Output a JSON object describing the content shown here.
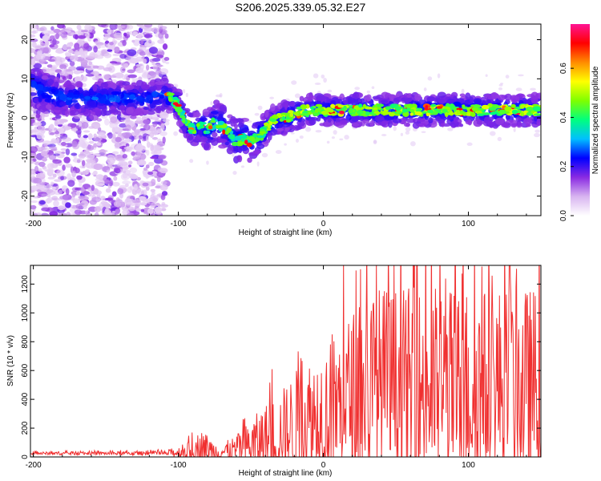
{
  "title": "S206.2025.339.05.32.E27",
  "chart_data": [
    {
      "type": "heatmap",
      "subtitle": "spectrogram",
      "xlabel": "Height of straight line (km)",
      "ylabel": "Frequency (Hz)",
      "xlim": [
        -202,
        150
      ],
      "ylim": [
        -25,
        24
      ],
      "xticks": [
        -200,
        -100,
        0,
        100
      ],
      "yticks": [
        -20,
        -10,
        0,
        10,
        20
      ],
      "ridge": {
        "x": [
          -202,
          -180,
          -150,
          -120,
          -110,
          -105,
          -100,
          -95,
          -90,
          -85,
          -80,
          -75,
          -70,
          -65,
          -60,
          -55,
          -50,
          -45,
          -40,
          -35,
          -30,
          -25,
          -20,
          -10,
          0,
          10,
          20,
          40,
          60,
          80,
          100,
          120,
          150
        ],
        "freq": [
          8,
          5,
          5,
          5,
          6,
          5,
          3,
          -1,
          -3,
          -2,
          -3,
          -1,
          -2,
          -4,
          -6,
          -5,
          -6,
          -5,
          -3,
          -1,
          0,
          0,
          1,
          2,
          2,
          2,
          2,
          2,
          2,
          2,
          2,
          2,
          2
        ],
        "half_width": [
          4,
          3,
          3,
          3,
          3,
          3,
          3,
          3,
          3,
          3,
          4,
          4,
          4,
          4,
          4,
          4,
          4,
          4,
          3,
          3,
          3,
          3,
          3,
          3,
          3,
          3,
          3,
          3,
          3,
          3,
          3,
          3,
          3
        ]
      },
      "noise_region_x": [
        -202,
        -108
      ],
      "colorbar": {
        "label": "Normalized spectral amplitude",
        "range": [
          0,
          0.78
        ],
        "ticks": [
          0.0,
          0.2,
          0.4,
          0.6
        ],
        "colors": [
          "#ffffff",
          "#d8b4f0",
          "#8a2be2",
          "#0000ff",
          "#00bfff",
          "#00ff7f",
          "#7fff00",
          "#ffff00",
          "#ff8c00",
          "#ff0000",
          "#ff1493"
        ]
      }
    },
    {
      "type": "line",
      "xlabel": "Height of straight line (km)",
      "ylabel": "SNR (10 * v/v)",
      "xlim": [
        -202,
        150
      ],
      "ylim": [
        0,
        1330
      ],
      "xticks": [
        -200,
        -100,
        0,
        100
      ],
      "yticks": [
        0,
        200,
        400,
        600,
        800,
        1000,
        1200
      ],
      "color": "#f03030",
      "envelope": {
        "x": [
          -202,
          -150,
          -110,
          -100,
          -90,
          -85,
          -80,
          -75,
          -70,
          -60,
          -50,
          -40,
          -30,
          -20,
          -10,
          0,
          10,
          20,
          30,
          40,
          50,
          60,
          70,
          80,
          90,
          100,
          110,
          120,
          130,
          140,
          150
        ],
        "base": [
          25,
          25,
          25,
          30,
          40,
          70,
          60,
          40,
          35,
          50,
          80,
          120,
          150,
          200,
          250,
          300,
          350,
          420,
          460,
          480,
          480,
          480,
          480,
          480,
          480,
          480,
          480,
          480,
          480,
          480,
          480
        ],
        "amp": [
          10,
          12,
          15,
          40,
          80,
          120,
          100,
          60,
          60,
          100,
          180,
          250,
          300,
          400,
          450,
          480,
          520,
          600,
          700,
          720,
          700,
          700,
          720,
          720,
          700,
          720,
          700,
          720,
          700,
          700,
          700
        ]
      }
    }
  ]
}
